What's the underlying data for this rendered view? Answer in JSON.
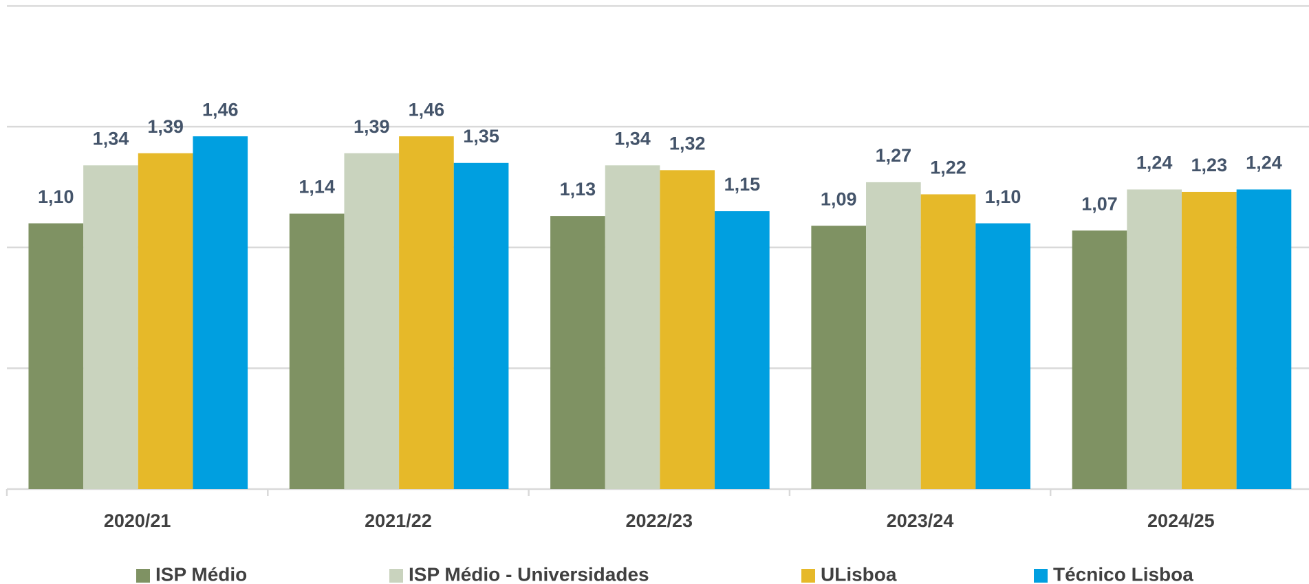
{
  "chart_data": {
    "type": "bar",
    "categories": [
      "2020/21",
      "2021/22",
      "2022/23",
      "2023/24",
      "2024/25"
    ],
    "series": [
      {
        "name": "ISP Médio",
        "color": "#7f9263",
        "values": [
          1.1,
          1.14,
          1.13,
          1.09,
          1.07
        ],
        "value_labels": [
          "1,10",
          "1,14",
          "1,13",
          "1,09",
          "1,07"
        ]
      },
      {
        "name": "ISP Médio - Universidades",
        "color": "#c9d3be",
        "values": [
          1.34,
          1.39,
          1.34,
          1.27,
          1.24
        ],
        "value_labels": [
          "1,34",
          "1,39",
          "1,34",
          "1,27",
          "1,24"
        ]
      },
      {
        "name": "ULisboa",
        "color": "#e6b929",
        "values": [
          1.39,
          1.46,
          1.32,
          1.22,
          1.23
        ],
        "value_labels": [
          "1,39",
          "1,46",
          "1,32",
          "1,22",
          "1,23"
        ]
      },
      {
        "name": "Técnico Lisboa",
        "color": "#009fe0",
        "values": [
          1.46,
          1.35,
          1.15,
          1.1,
          1.24
        ],
        "value_labels": [
          "1,46",
          "1,35",
          "1,15",
          "1,10",
          "1,24"
        ]
      }
    ],
    "ylim": [
      0,
      2
    ],
    "yticks": [
      0,
      0.5,
      1,
      1.5,
      2
    ],
    "grid": true,
    "legend": "bottom"
  }
}
